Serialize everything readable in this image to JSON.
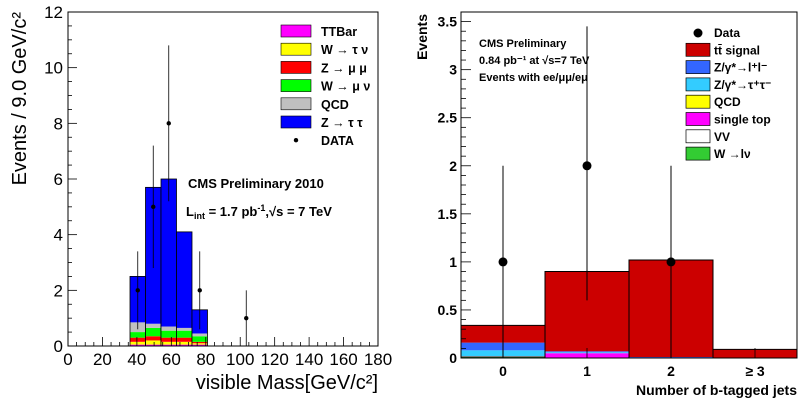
{
  "chart_data": [
    {
      "type": "bar",
      "stacked": true,
      "xlabel": "visible Mass[GeV/c²]",
      "ylabel": "Events / 9.0 GeV/c²",
      "xlim": [
        0,
        180
      ],
      "ylim": [
        0,
        12
      ],
      "xticks": [
        "0",
        "20",
        "40",
        "60",
        "80",
        "100",
        "120",
        "140",
        "160",
        "180"
      ],
      "yticks": [
        "0",
        "2",
        "4",
        "6",
        "8",
        "10",
        "12"
      ],
      "bins": [
        [
          36,
          45
        ],
        [
          45,
          54
        ],
        [
          54,
          63
        ],
        [
          63,
          72
        ],
        [
          72,
          81
        ]
      ],
      "series": [
        {
          "name": "Z → τ τ",
          "color": "#0000ff",
          "values": [
            1.65,
            4.9,
            5.3,
            3.45,
            0.85
          ]
        },
        {
          "name": "QCD",
          "color": "#c0c0c0",
          "values": [
            0.35,
            0.15,
            0.15,
            0.1,
            0.1
          ]
        },
        {
          "name": "W → μ ν",
          "color": "#00ff00",
          "values": [
            0.2,
            0.3,
            0.25,
            0.25,
            0.2
          ]
        },
        {
          "name": "Z → μ μ",
          "color": "#ff0000",
          "values": [
            0.15,
            0.15,
            0.15,
            0.15,
            0.05
          ]
        },
        {
          "name": "W → τ ν",
          "color": "#ffff00",
          "values": [
            0.1,
            0.15,
            0.1,
            0.1,
            0.05
          ]
        },
        {
          "name": "TTBar",
          "color": "#ff00ff",
          "values": [
            0.05,
            0.05,
            0.05,
            0.05,
            0.05
          ]
        }
      ],
      "legend": [
        "TTBar",
        "W → τ ν",
        "Z → μ μ",
        "W → μ ν",
        "QCD",
        "Z → τ τ",
        "DATA"
      ],
      "data_points": [
        {
          "x": 40.5,
          "y": 2,
          "err": 1.4
        },
        {
          "x": 49.5,
          "y": 5,
          "err": 2.2
        },
        {
          "x": 58.5,
          "y": 8,
          "err": 2.8
        },
        {
          "x": 76.5,
          "y": 2,
          "err": 1.4
        },
        {
          "x": 103.5,
          "y": 1,
          "err": 1.0
        }
      ],
      "annotations": [
        "CMS Preliminary 2010",
        "L_int = 1.7 pb⁻¹, √s = 7 TeV"
      ]
    },
    {
      "type": "bar",
      "stacked": true,
      "xlabel": "Number of b-tagged jets",
      "ylabel": "Events",
      "xlim": [
        -0.5,
        3.5
      ],
      "ylim": [
        0,
        3.6
      ],
      "categories": [
        "0",
        "1",
        "2",
        "≥ 3"
      ],
      "yticks": [
        "0",
        "0.5",
        "1",
        "1.5",
        "2",
        "2.5",
        "3",
        "3.5"
      ],
      "series": [
        {
          "name": "W →lν",
          "color": "#33cc33",
          "values": [
            0.01,
            0.0,
            0.0,
            0.0
          ]
        },
        {
          "name": "VV",
          "color": "#ffffff",
          "values": [
            0.01,
            0.0,
            0.0,
            0.0
          ]
        },
        {
          "name": "single top",
          "color": "#ff00ff",
          "values": [
            0.0,
            0.05,
            0.0,
            0.0
          ]
        },
        {
          "name": "QCD",
          "color": "#ffff00",
          "values": [
            0.0,
            0.0,
            0.0,
            0.0
          ]
        },
        {
          "name": "Z/γ*→τ⁺τ⁻",
          "color": "#33ccff",
          "values": [
            0.06,
            0.01,
            0.0,
            0.0
          ]
        },
        {
          "name": "Z/γ*→l⁺l⁻",
          "color": "#3366ff",
          "values": [
            0.08,
            0.01,
            0.01,
            0.0
          ]
        },
        {
          "name": "tt̄ signal",
          "color": "#cc0000",
          "values": [
            0.18,
            0.83,
            1.01,
            0.09
          ]
        }
      ],
      "legend": [
        "Data",
        "tt̄ signal",
        "Z/γ*→l⁺l⁻",
        "Z/γ*→τ⁺τ⁻",
        "QCD",
        "single top",
        "VV",
        "W →lν"
      ],
      "data_points": [
        {
          "x": 0,
          "y": 1,
          "lo": 0,
          "hi": 2
        },
        {
          "x": 1,
          "y": 2,
          "lo": 0.6,
          "hi": 3.45
        },
        {
          "x": 2,
          "y": 1,
          "lo": 0,
          "hi": 2
        }
      ],
      "annotations": [
        "CMS Preliminary",
        "0.84 pb⁻¹ at √s=7 TeV",
        "Events with ee/μμ/eμ"
      ]
    }
  ]
}
